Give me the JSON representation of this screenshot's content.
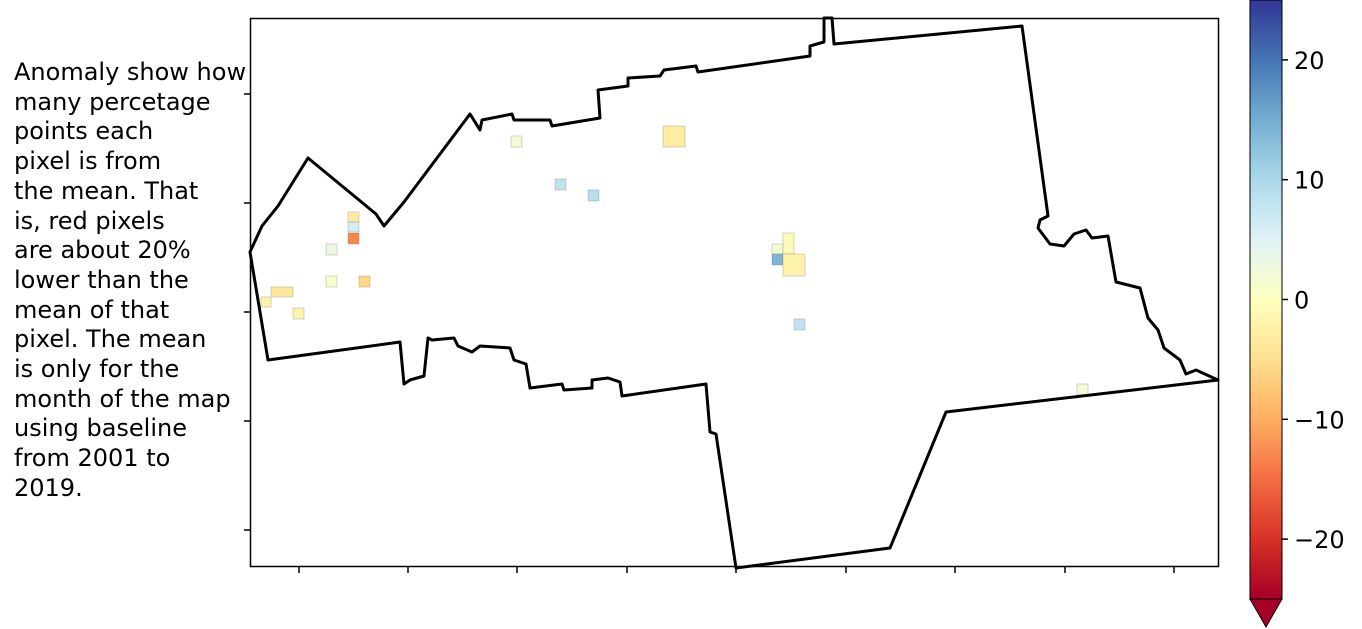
{
  "annotation": "Anomaly show how\nmany percetage\npoints each\npixel is from\nthe mean. That\nis, red pixels\nare about 20%\nlower than the\nmean of that\npixel. The mean\nis only for the\nmonth of the map\nusing baseline\nfrom 2001 to\n2019.",
  "colorbar": {
    "min": -25,
    "max": 25,
    "ticks": [
      {
        "value": 20,
        "label": "20"
      },
      {
        "value": 10,
        "label": "10"
      },
      {
        "value": 0,
        "label": "0"
      },
      {
        "value": -10,
        "label": "−10"
      },
      {
        "value": -20,
        "label": "−20"
      }
    ],
    "extend": "min",
    "colormap": "RdYlBu",
    "stops": [
      "#a50026",
      "#d73027",
      "#f46d43",
      "#fdae61",
      "#fee090",
      "#ffffbf",
      "#e0f3f8",
      "#abd9e9",
      "#74add1",
      "#4575b4",
      "#313695"
    ]
  },
  "pixels": [
    {
      "name": "pixel-w-1",
      "value": -2
    },
    {
      "name": "pixel-w-2",
      "value": -4
    },
    {
      "name": "pixel-w-3",
      "value": 6
    },
    {
      "name": "pixel-w-4",
      "value": -13
    },
    {
      "name": "pixel-w-5",
      "value": 3
    },
    {
      "name": "pixel-w-6",
      "value": 1
    },
    {
      "name": "pixel-w-7",
      "value": -6
    },
    {
      "name": "pixel-w-8",
      "value": -3
    },
    {
      "name": "pixel-w-9",
      "value": -2
    },
    {
      "name": "pixel-w-10",
      "value": -3
    },
    {
      "name": "pixel-n-1",
      "value": 2
    },
    {
      "name": "pixel-n-2",
      "value": -3
    },
    {
      "name": "pixel-c-1",
      "value": 8
    },
    {
      "name": "pixel-c-2",
      "value": 9
    },
    {
      "name": "pixel-e-1",
      "value": 2
    },
    {
      "name": "pixel-e-2",
      "value": 14
    },
    {
      "name": "pixel-e-3",
      "value": -1
    },
    {
      "name": "pixel-e-4",
      "value": -2
    },
    {
      "name": "pixel-e-5",
      "value": 8
    },
    {
      "name": "pixel-se-1",
      "value": 2
    }
  ]
}
